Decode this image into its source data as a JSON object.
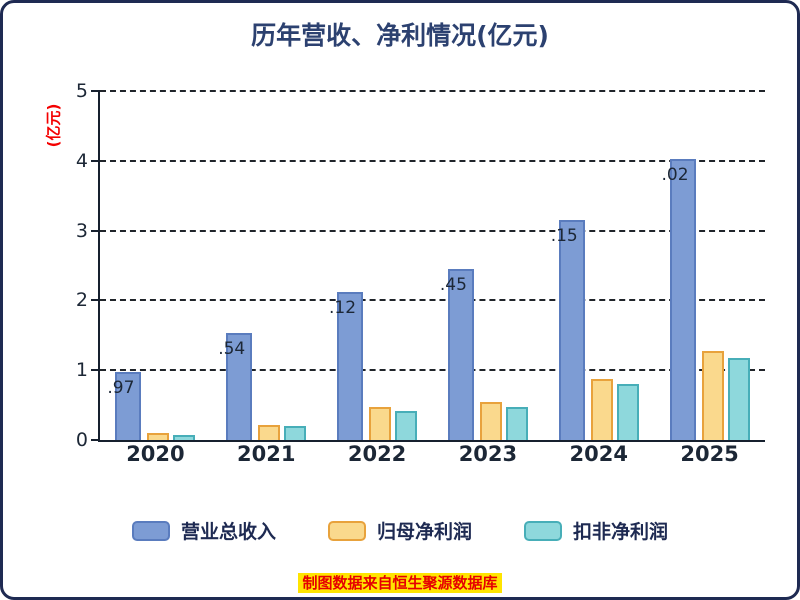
{
  "title": "历年营收、净利情况(亿元)",
  "y_axis_label": "(亿元)",
  "footer": "制图数据来自恒生聚源数据库",
  "colors": {
    "title_text": "#2c4170",
    "axis_text": "#1c2736",
    "y_axis_label_text": "#f40000",
    "footer_text": "#e60000",
    "footer_highlight": "#ffe400",
    "legend_text": "#1e2a52",
    "grid_line": "#20242a",
    "axis_line": "#16202e"
  },
  "chart_data": {
    "type": "bar",
    "title": "历年营收、净利情况(亿元)",
    "xlabel": "",
    "ylabel": "(亿元)",
    "categories": [
      "2020",
      "2021",
      "2022",
      "2023",
      "2024",
      "2025"
    ],
    "series": [
      {
        "key": "total-revenue",
        "name": "营业总收入",
        "fill": "#7d9cd4",
        "border": "#5a7cbe",
        "values": [
          0.97,
          1.54,
          2.12,
          2.45,
          3.15,
          4.02
        ],
        "value_labels": [
          "0.97",
          "1.54",
          "2.12",
          "2.45",
          "3.15",
          "4.02"
        ],
        "visible_label_fragments": [
          ".97",
          ".54",
          ".12",
          ".45",
          ".15",
          ".02"
        ]
      },
      {
        "key": "net-profit-attributable",
        "name": "归母净利润",
        "fill": "#fad98d",
        "border": "#e8a23c",
        "values": [
          0.1,
          0.22,
          0.47,
          0.54,
          0.88,
          1.28
        ]
      },
      {
        "key": "non-gaap-net-profit",
        "name": "扣非净利润",
        "fill": "#8ed8dc",
        "border": "#47aeb8",
        "values": [
          0.07,
          0.2,
          0.42,
          0.48,
          0.8,
          1.17
        ]
      }
    ],
    "ylim": [
      0,
      5
    ],
    "yticks": [
      0,
      1,
      2,
      3,
      4,
      5
    ],
    "grid": "dashed-horizontal",
    "legend_position": "bottom"
  },
  "legend": [
    {
      "label": "营业总收入",
      "fill": "#7d9cd4",
      "border": "#5a7cbe"
    },
    {
      "label": "归母净利润",
      "fill": "#fad98d",
      "border": "#e8a23c"
    },
    {
      "label": "扣非净利润",
      "fill": "#8ed8dc",
      "border": "#47aeb8"
    }
  ]
}
